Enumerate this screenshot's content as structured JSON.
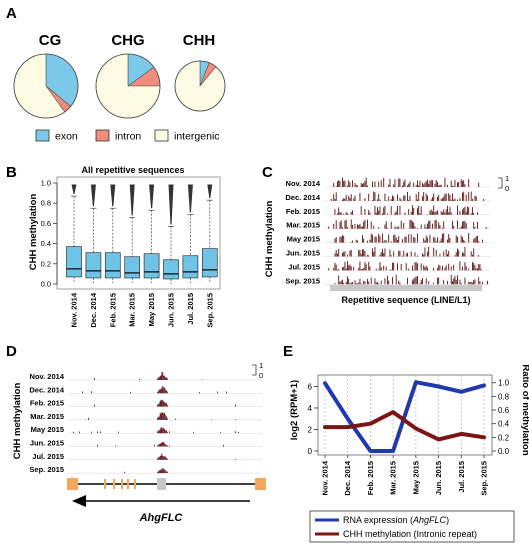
{
  "colors": {
    "exon": "#7cc8e8",
    "intron": "#f08c7d",
    "intergenic": "#fdfbe3",
    "box": "#6ec3e7",
    "methylation_bar": "#5a1010",
    "rna_line": "#2138b0",
    "chh_line": "#7b1515",
    "track_gray": "#c8c8c8",
    "gene_orange": "#f5a85c"
  },
  "panel_labels": {
    "A": "A",
    "B": "B",
    "C": "C",
    "D": "D",
    "E": "E"
  },
  "months": [
    "Nov. 2014",
    "Dec. 2014",
    "Feb. 2015",
    "Mar. 2015",
    "May 2015",
    "Jun. 2015",
    "Jul. 2015",
    "Sep. 2015"
  ],
  "panelA": {
    "legend": [
      {
        "key": "exon",
        "label": "exon"
      },
      {
        "key": "intron",
        "label": "intron"
      },
      {
        "key": "intergenic",
        "label": "intergenic"
      }
    ]
  },
  "panelB": {
    "title": "All repetitive sequences",
    "ylabel": "CHH methylation",
    "ticks": [
      "0.0",
      "0.2",
      "0.4",
      "0.6",
      "0.8",
      "1.0"
    ]
  },
  "panelC": {
    "ylabel": "CHH methylation",
    "scale_top": "1",
    "scale_bottom": "0",
    "xlabel": "Repetitive sequence (LINE/L1)"
  },
  "panelD": {
    "ylabel": "CHH methylation",
    "scale_top": "1",
    "scale_bottom": "0",
    "gene": "AhgFLC"
  },
  "panelE": {
    "ylabel_left": "log2 (RPM+1)",
    "ylabel_right": "Ratio of methylation",
    "left_ticks": [
      "0",
      "2",
      "4",
      "6"
    ],
    "right_ticks": [
      "0.0",
      "0.2",
      "0.4",
      "0.6",
      "0.8",
      "1.0"
    ],
    "legend_rna": "RNA expression",
    "legend_rna_gene": "AhgFLC",
    "legend_chh": "CHH methylation (Intronic repeat)"
  },
  "chart_data": [
    {
      "type": "pie",
      "title": "CG",
      "labels": [
        "exon",
        "intron",
        "intergenic"
      ],
      "values": [
        0.36,
        0.04,
        0.6
      ]
    },
    {
      "type": "pie",
      "title": "CHG",
      "labels": [
        "exon",
        "intron",
        "intergenic"
      ],
      "values": [
        0.15,
        0.1,
        0.75
      ]
    },
    {
      "type": "pie",
      "title": "CHH",
      "labels": [
        "exon",
        "intron",
        "intergenic"
      ],
      "values": [
        0.06,
        0.05,
        0.89
      ]
    },
    {
      "type": "box",
      "title": "All repetitive sequences",
      "ylabel": "CHH methylation",
      "ylim": [
        0,
        1
      ],
      "categories": [
        "Nov. 2014",
        "Dec. 2014",
        "Feb. 2015",
        "Mar. 2015",
        "May 2015",
        "Jun. 2015",
        "Jul. 2015",
        "Sep. 2015"
      ],
      "boxes": [
        {
          "q1": 0.07,
          "median": 0.15,
          "q3": 0.37,
          "whisker_high": 0.87
        },
        {
          "q1": 0.06,
          "median": 0.13,
          "q3": 0.31,
          "whisker_high": 0.75
        },
        {
          "q1": 0.06,
          "median": 0.13,
          "q3": 0.31,
          "whisker_high": 0.75
        },
        {
          "q1": 0.06,
          "median": 0.11,
          "q3": 0.27,
          "whisker_high": 0.66
        },
        {
          "q1": 0.06,
          "median": 0.12,
          "q3": 0.3,
          "whisker_high": 0.73
        },
        {
          "q1": 0.05,
          "median": 0.1,
          "q3": 0.24,
          "whisker_high": 0.57
        },
        {
          "q1": 0.06,
          "median": 0.12,
          "q3": 0.28,
          "whisker_high": 0.69
        },
        {
          "q1": 0.07,
          "median": 0.14,
          "q3": 0.35,
          "whisker_high": 0.83
        }
      ]
    },
    {
      "type": "line",
      "categories": [
        "Nov. 2014",
        "Dec. 2014",
        "Feb. 2015",
        "Mar. 2015",
        "May 2015",
        "Jun. 2015",
        "Jul. 2015",
        "Sep. 2015"
      ],
      "series": [
        {
          "name": "RNA expression (AhgFLC)",
          "axis": "left",
          "values": [
            6.3,
            3.0,
            0.0,
            0.0,
            6.4,
            6.0,
            5.5,
            6.1
          ]
        },
        {
          "name": "CHH methylation (Intronic repeat)",
          "axis": "right",
          "values": [
            0.35,
            0.35,
            0.4,
            0.57,
            0.33,
            0.17,
            0.25,
            0.2
          ]
        }
      ],
      "ylabel": "log2 (RPM+1)",
      "ylabel_right": "Ratio of methylation",
      "ylim": [
        0,
        6.6
      ],
      "ylim_right": [
        0,
        1.04
      ]
    }
  ]
}
